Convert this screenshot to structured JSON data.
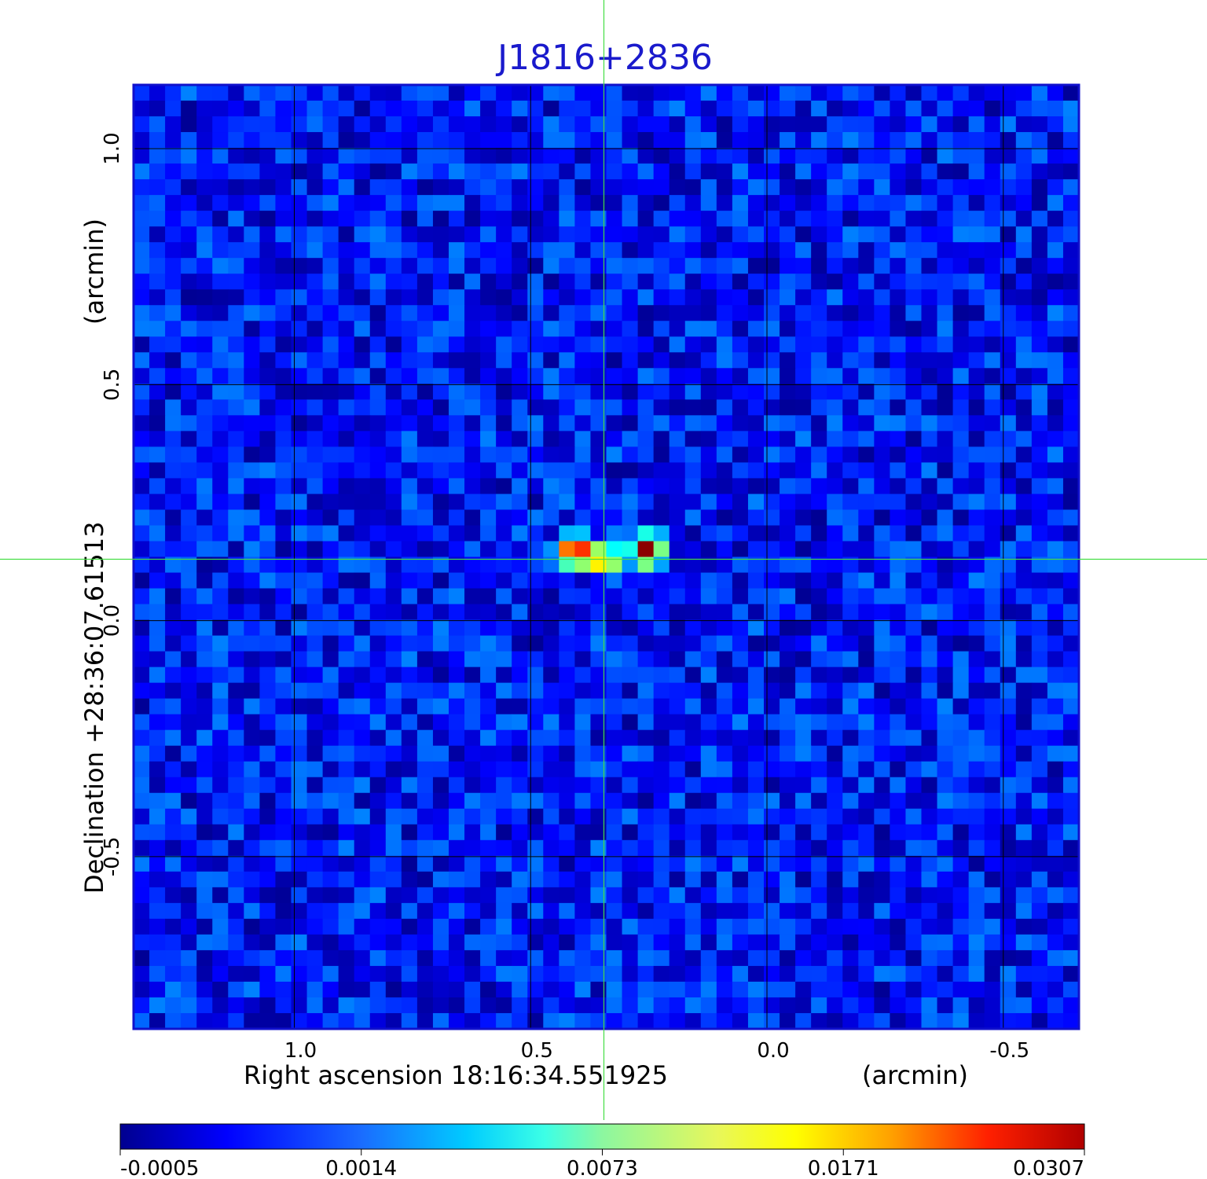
{
  "chart_data": {
    "type": "heatmap",
    "title": "J1816+2836",
    "xlabel": "Right ascension  18:16:34.551925",
    "xunit": "(arcmin)",
    "ylabel": "Declination  +28:36:07.61513",
    "yunit": "(arcmin)",
    "xlim": [
      1.34,
      -0.66
    ],
    "ylim": [
      -0.865,
      1.135
    ],
    "x_ticks": [
      1.0,
      0.5,
      0.0,
      -0.5
    ],
    "x_tick_labels": [
      "1.0",
      "0.5",
      "0.0",
      "-0.5"
    ],
    "y_ticks": [
      1.0,
      0.5,
      0.0,
      -0.5
    ],
    "y_tick_labels": [
      "1.0",
      "0.5",
      "0.0",
      "-0.5"
    ],
    "grid": true,
    "crosshair": {
      "x": 0.345,
      "y": 0.13,
      "color": "#44dd44"
    },
    "colormap": "jet",
    "colorbar": {
      "ticks": [
        -0.0005,
        0.0014,
        0.0073,
        0.0171,
        0.0307
      ],
      "tick_labels": [
        "-0.0005",
        "0.0014",
        "0.0073",
        "0.0171",
        "0.0307"
      ]
    },
    "background_level": 0.0004,
    "sources": [
      {
        "x": 0.405,
        "y": 0.145,
        "peak": 0.0307
      },
      {
        "x": 0.345,
        "y": 0.13,
        "peak": 0.0171
      },
      {
        "x": 0.255,
        "y": 0.15,
        "peak": 0.0307
      }
    ]
  },
  "colors": {
    "title": "#1a1acc",
    "frame": "#1111cc",
    "grid": "#000000"
  }
}
